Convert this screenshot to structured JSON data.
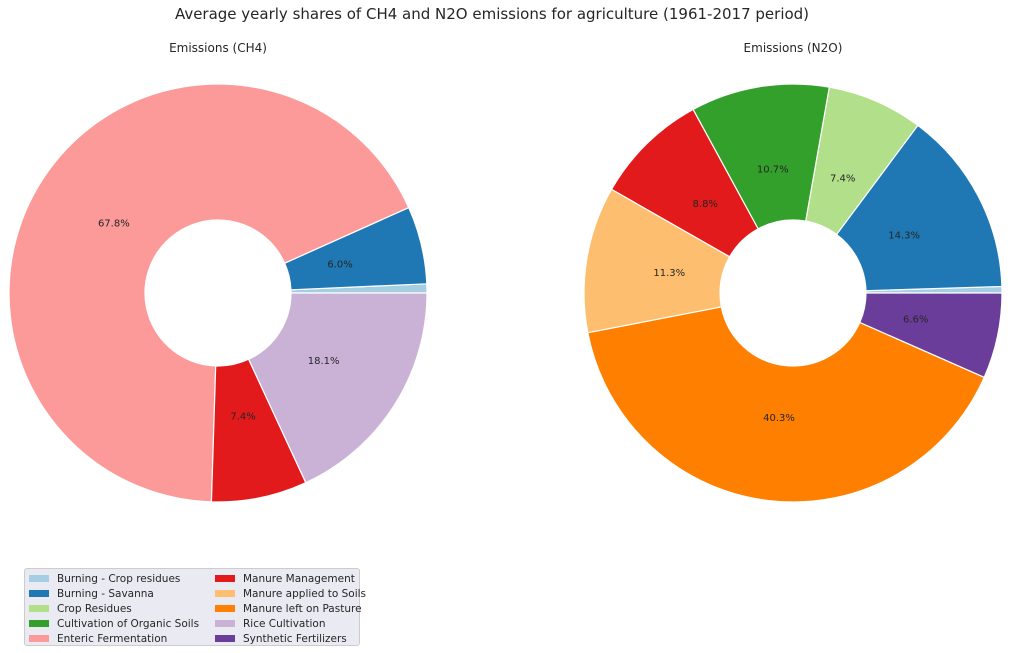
{
  "chart_data": {
    "title": "Average yearly shares of CH4 and N2O emissions for agriculture (1961-2017 period)",
    "legend_placement": "bottom-left",
    "categories": [
      {
        "name": "Burning - Crop residues",
        "color": "#a6cee3"
      },
      {
        "name": "Burning - Savanna",
        "color": "#1f78b4"
      },
      {
        "name": "Crop Residues",
        "color": "#b2df8a"
      },
      {
        "name": "Cultivation of Organic Soils",
        "color": "#33a02c"
      },
      {
        "name": "Enteric Fermentation",
        "color": "#fb9a99"
      },
      {
        "name": "Manure Management",
        "color": "#e31a1c"
      },
      {
        "name": "Manure applied to Soils",
        "color": "#fdbf6f"
      },
      {
        "name": "Manure left on Pasture",
        "color": "#ff7f00"
      },
      {
        "name": "Rice Cultivation",
        "color": "#cab2d6"
      },
      {
        "name": "Synthetic Fertilizers",
        "color": "#6a3d9a"
      }
    ],
    "charts": [
      {
        "type": "pie",
        "donut": true,
        "title": "Emissions (CH4)",
        "slices": [
          {
            "category": "Burning - Crop residues",
            "value": 0.7,
            "label": ""
          },
          {
            "category": "Burning - Savanna",
            "value": 6.0,
            "label": "6.0%"
          },
          {
            "category": "Enteric Fermentation",
            "value": 67.8,
            "label": "67.8%"
          },
          {
            "category": "Manure Management",
            "value": 7.4,
            "label": "7.4%"
          },
          {
            "category": "Rice Cultivation",
            "value": 18.1,
            "label": "18.1%"
          }
        ]
      },
      {
        "type": "pie",
        "donut": true,
        "title": "Emissions (N2O)",
        "slices": [
          {
            "category": "Burning - Crop residues",
            "value": 0.5,
            "label": ""
          },
          {
            "category": "Burning - Savanna",
            "value": 14.3,
            "label": "14.3%"
          },
          {
            "category": "Crop Residues",
            "value": 7.4,
            "label": "7.4%"
          },
          {
            "category": "Cultivation of Organic Soils",
            "value": 10.7,
            "label": "10.7%"
          },
          {
            "category": "Manure Management",
            "value": 8.8,
            "label": "8.8%"
          },
          {
            "category": "Manure applied to Soils",
            "value": 11.3,
            "label": "11.3%"
          },
          {
            "category": "Manure left on Pasture",
            "value": 40.3,
            "label": "40.3%"
          },
          {
            "category": "Synthetic Fertilizers",
            "value": 6.6,
            "label": "6.6%"
          }
        ]
      }
    ]
  }
}
